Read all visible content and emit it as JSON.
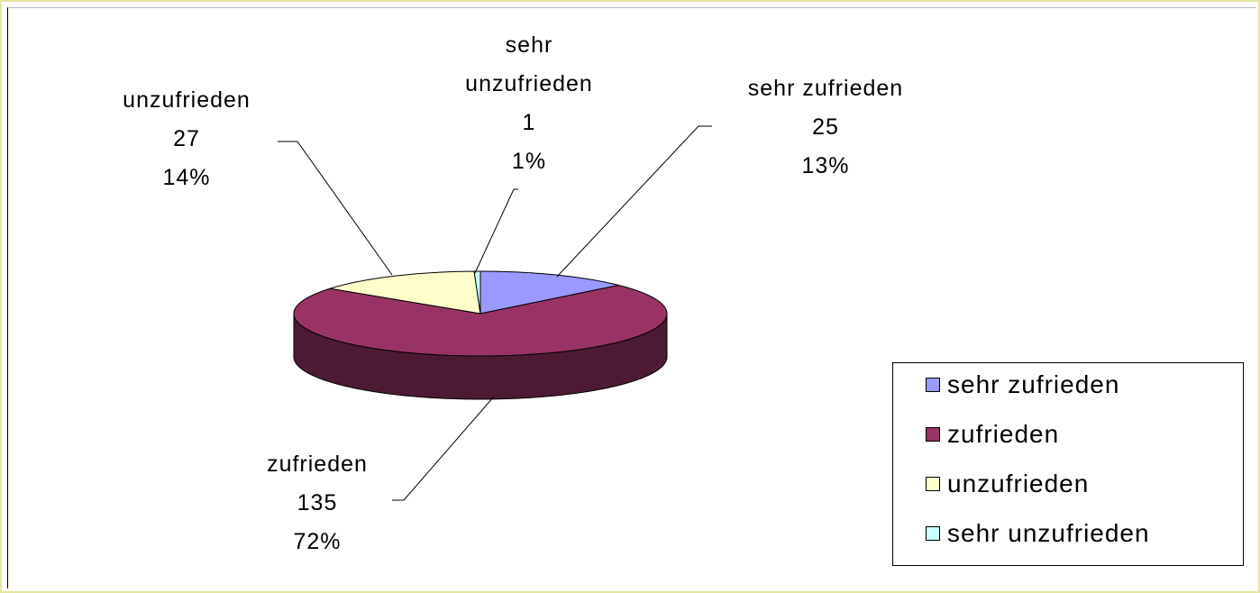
{
  "chart_data": {
    "type": "pie3d",
    "categories": [
      "sehr zufrieden",
      "zufrieden",
      "unzufrieden",
      "sehr unzufrieden"
    ],
    "values": [
      25,
      135,
      27,
      1
    ],
    "percent_labels": [
      "13%",
      "72%",
      "14%",
      "1%"
    ],
    "colors": [
      "#9999ff",
      "#993366",
      "#ffffcc",
      "#ccffff"
    ],
    "legend": "right"
  }
}
